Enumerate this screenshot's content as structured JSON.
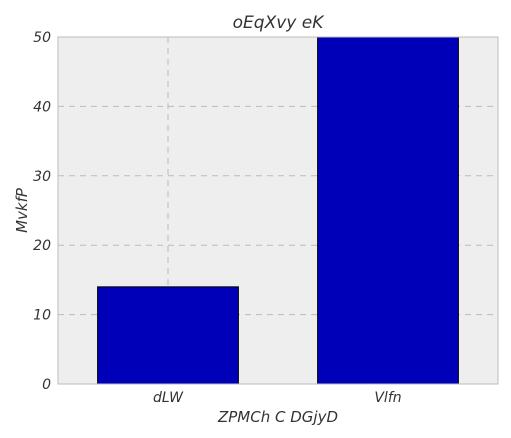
{
  "chart_data": {
    "type": "bar",
    "title": "oEqXvy eK",
    "xlabel": "ZPMCh C DGjyD",
    "ylabel": "MvkfP",
    "categories": [
      "dLW",
      "Vlfn"
    ],
    "values": [
      14,
      50
    ],
    "ylim": [
      0,
      50
    ],
    "yticks": [
      0,
      10,
      20,
      30,
      40,
      50
    ],
    "grid": true,
    "colors": {
      "bar": "#0000b8",
      "bar_edge": "#000000",
      "plot_background": "#eeeeee",
      "grid": "#bbbbbb",
      "frame": "#bcbcbc"
    }
  }
}
